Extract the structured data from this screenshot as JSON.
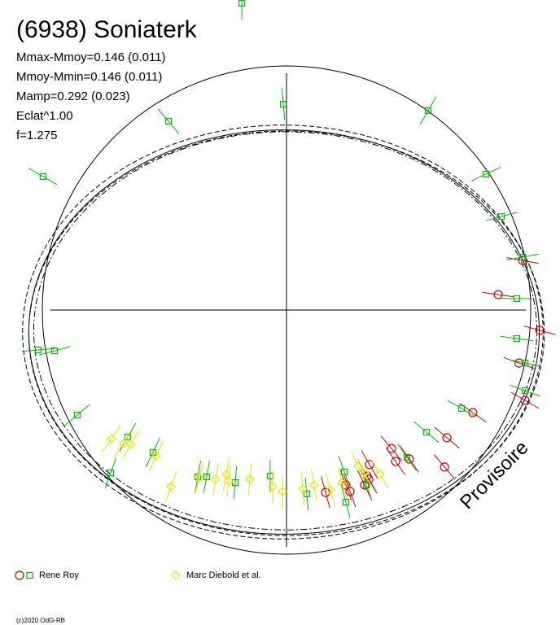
{
  "chart_data": {
    "type": "scatter",
    "title": "(6938) Soniaterk",
    "stats": [
      "Mmax-Mmoy=0.146 (0.011)",
      "Mmoy-Mmin=0.146 (0.011)",
      "Mamp=0.292 (0.023)",
      "Eclat^1.00",
      "f=1.275"
    ],
    "legend": [
      {
        "label": "Rene Roy",
        "symbols": [
          "circle",
          "square"
        ],
        "colors": [
          "#cc0000",
          "#00bb00"
        ]
      },
      {
        "label": "Marc Diebold et al.",
        "symbols": [
          "diamond"
        ],
        "colors": [
          "#e6e600"
        ]
      }
    ],
    "watermark": "Provisoire",
    "copyright": "(c)2020 OdG-RB",
    "axes": {
      "x": 0,
      "y": 0,
      "grid": false
    },
    "colors": {
      "roy_circle": "#cc0000",
      "roy_square": "#00bb00",
      "diebold": "#e6e600",
      "curve": "#000000"
    },
    "curves": [
      {
        "style": "solid",
        "center": [
          0.0,
          0.0
        ],
        "radii": [
          1.0,
          1.0
        ],
        "amp2": 0.0
      },
      {
        "style": "solid",
        "center": [
          -0.01,
          -0.09
        ],
        "radii": [
          1.025,
          0.845
        ],
        "amp2": 0.02
      },
      {
        "style": "dashed",
        "center": [
          -0.015,
          -0.09
        ],
        "radii": [
          1.045,
          0.865
        ],
        "amp2": 0.02
      },
      {
        "style": "dashdot",
        "center": [
          -0.005,
          -0.085
        ],
        "radii": [
          1.01,
          0.832
        ],
        "amp2": 0.02
      },
      {
        "style": "dashed",
        "center": [
          0.0,
          -0.095
        ],
        "radii": [
          1.03,
          0.85
        ],
        "amp2": 0.025
      }
    ],
    "series": [
      {
        "name": "Rene Roy",
        "marker": "circle",
        "points": [
          [
            0.867,
            0.063,
            -8
          ],
          [
            1.037,
            -0.083,
            -15
          ],
          [
            0.952,
            -0.217,
            -20
          ],
          [
            0.977,
            -0.37,
            -30
          ],
          [
            0.763,
            -0.42,
            -35
          ],
          [
            0.657,
            -0.523,
            -40
          ],
          [
            0.647,
            -0.643,
            -50
          ],
          [
            0.43,
            -0.567,
            -50
          ],
          [
            0.503,
            -0.61,
            -55
          ],
          [
            0.34,
            -0.633,
            -60
          ],
          [
            0.337,
            -0.693,
            -60
          ],
          [
            0.26,
            -0.743,
            -70
          ],
          [
            0.243,
            -0.717,
            -70
          ],
          [
            0.33,
            -0.68,
            -60
          ],
          [
            0.16,
            -0.747,
            -75
          ],
          [
            0.32,
            -0.717,
            -65
          ],
          [
            0.447,
            -0.62,
            -55
          ],
          [
            0.967,
            0.203,
            -10
          ]
        ]
      },
      {
        "name": "Rene Roy",
        "marker": "square",
        "points": [
          [
            0.817,
            0.557,
            25
          ],
          [
            0.88,
            0.383,
            15
          ],
          [
            0.967,
            0.217,
            10
          ],
          [
            0.943,
            0.047,
            0
          ],
          [
            0.943,
            -0.117,
            -8
          ],
          [
            0.977,
            -0.217,
            -12
          ],
          [
            0.977,
            -0.33,
            -20
          ],
          [
            0.717,
            -0.403,
            -30
          ],
          [
            0.573,
            -0.5,
            -40
          ],
          [
            0.493,
            -0.603,
            -55
          ],
          [
            0.327,
            -0.717,
            -70
          ],
          [
            0.243,
            -0.787,
            -75
          ],
          [
            0.083,
            -0.753,
            -85
          ],
          [
            -0.067,
            -0.68,
            -90
          ],
          [
            -0.21,
            -0.707,
            -95
          ],
          [
            -0.363,
            -0.683,
            -100
          ],
          [
            -0.547,
            -0.583,
            -115
          ],
          [
            -0.65,
            -0.52,
            -120
          ],
          [
            -0.857,
            -0.43,
            -140
          ],
          [
            -0.95,
            -0.167,
            -165
          ],
          [
            -1.017,
            -0.163,
            -175
          ],
          [
            -0.72,
            -0.667,
            -110
          ],
          [
            -0.483,
            0.773,
            130
          ],
          [
            -0.013,
            0.843,
            95
          ],
          [
            0.58,
            0.817,
            60
          ],
          [
            -0.997,
            0.547,
            150
          ],
          [
            -0.183,
            1.257,
            90
          ],
          [
            -0.327,
            -0.683,
            -100
          ],
          [
            0.237,
            -0.663,
            -70
          ]
        ]
      },
      {
        "name": "Marc Diebold et al.",
        "marker": "diamond",
        "points": [
          [
            0.32,
            -0.667,
            -65
          ],
          [
            0.293,
            -0.64,
            -65
          ],
          [
            0.227,
            -0.707,
            -75
          ],
          [
            0.18,
            -0.737,
            -75
          ],
          [
            0.113,
            -0.717,
            -80
          ],
          [
            0.067,
            -0.733,
            -85
          ],
          [
            -0.017,
            -0.743,
            -90
          ],
          [
            -0.057,
            -0.723,
            -90
          ],
          [
            -0.15,
            -0.693,
            -95
          ],
          [
            -0.237,
            -0.7,
            -95
          ],
          [
            -0.247,
            -0.673,
            -100
          ],
          [
            -0.29,
            -0.693,
            -100
          ],
          [
            -0.357,
            -0.687,
            -105
          ],
          [
            -0.473,
            -0.723,
            -110
          ],
          [
            -0.533,
            -0.597,
            -115
          ],
          [
            -0.637,
            -0.55,
            -120
          ],
          [
            -0.717,
            -0.527,
            -125
          ],
          [
            -0.667,
            -0.547,
            -125
          ],
          [
            0.383,
            -0.673,
            -60
          ]
        ]
      }
    ]
  }
}
